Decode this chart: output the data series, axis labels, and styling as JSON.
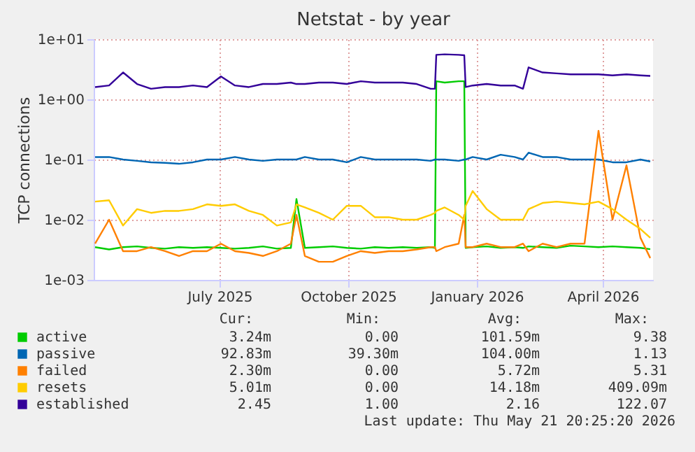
{
  "chart_data": {
    "type": "line",
    "title": "Netstat - by year",
    "ylabel": "TCP connections",
    "log": true,
    "grid": true,
    "legend": "bottom",
    "ylim": [
      0.001,
      10
    ],
    "yticks": [
      {
        "value": 0.001,
        "label": "1e-03"
      },
      {
        "value": 0.01,
        "label": "1e-02"
      },
      {
        "value": 0.1,
        "label": "1e-01"
      },
      {
        "value": 1,
        "label": "1e+00"
      },
      {
        "value": 10,
        "label": "1e+01"
      }
    ],
    "xlim": [
      "2025-04-17",
      "2026-05-22"
    ],
    "xticks": [
      {
        "value": "2025-07-16",
        "label": "July 2025"
      },
      {
        "value": "2025-10-16",
        "label": "October 2025"
      },
      {
        "value": "2026-01-16",
        "label": "January 2026"
      },
      {
        "value": "2026-04-16",
        "label": "April 2026"
      }
    ],
    "x": [
      "2025-04-18",
      "2025-04-28",
      "2025-05-08",
      "2025-05-18",
      "2025-05-28",
      "2025-06-07",
      "2025-06-17",
      "2025-06-27",
      "2025-07-07",
      "2025-07-17",
      "2025-07-27",
      "2025-08-06",
      "2025-08-16",
      "2025-08-26",
      "2025-09-05",
      "2025-09-09",
      "2025-09-15",
      "2025-09-25",
      "2025-10-05",
      "2025-10-15",
      "2025-10-25",
      "2025-11-04",
      "2025-11-14",
      "2025-11-24",
      "2025-12-04",
      "2025-12-14",
      "2025-12-17",
      "2025-12-18",
      "2025-12-24",
      "2026-01-03",
      "2026-01-07",
      "2026-01-08",
      "2026-01-13",
      "2026-01-23",
      "2026-02-02",
      "2026-02-12",
      "2026-02-18",
      "2026-02-22",
      "2026-03-04",
      "2026-03-14",
      "2026-03-24",
      "2026-04-03",
      "2026-04-13",
      "2026-04-23",
      "2026-05-03",
      "2026-05-13",
      "2026-05-20"
    ],
    "series": [
      {
        "name": "active",
        "color": "#00cc00",
        "values": [
          0.0035,
          0.0032,
          0.0035,
          0.0036,
          0.0034,
          0.0033,
          0.0035,
          0.0034,
          0.0035,
          0.0034,
          0.0033,
          0.0034,
          0.0036,
          0.0033,
          0.0034,
          0.022,
          0.0034,
          0.0035,
          0.0036,
          0.0034,
          0.0033,
          0.0035,
          0.0034,
          0.0035,
          0.0034,
          0.0035,
          0.0034,
          2.0,
          1.9,
          2.0,
          2.0,
          0.0034,
          0.0035,
          0.0036,
          0.0034,
          0.0035,
          0.0034,
          0.0036,
          0.0035,
          0.0034,
          0.0037,
          0.0036,
          0.0035,
          0.0036,
          0.0035,
          0.0034,
          0.00324
        ]
      },
      {
        "name": "passive",
        "color": "#0066b3",
        "values": [
          0.11,
          0.11,
          0.1,
          0.095,
          0.09,
          0.088,
          0.085,
          0.09,
          0.1,
          0.1,
          0.11,
          0.1,
          0.095,
          0.1,
          0.1,
          0.1,
          0.11,
          0.1,
          0.1,
          0.09,
          0.11,
          0.1,
          0.1,
          0.1,
          0.1,
          0.095,
          0.1,
          0.1,
          0.1,
          0.095,
          0.1,
          0.1,
          0.11,
          0.1,
          0.12,
          0.11,
          0.1,
          0.13,
          0.11,
          0.11,
          0.1,
          0.1,
          0.1,
          0.09,
          0.09,
          0.1,
          0.093
        ]
      },
      {
        "name": "failed",
        "color": "#ff8000",
        "values": [
          0.004,
          0.01,
          0.003,
          0.003,
          0.0035,
          0.003,
          0.0025,
          0.003,
          0.003,
          0.004,
          0.003,
          0.0028,
          0.0025,
          0.003,
          0.004,
          0.012,
          0.0025,
          0.002,
          0.002,
          0.0025,
          0.003,
          0.0028,
          0.003,
          0.003,
          0.0032,
          0.0035,
          0.0035,
          0.003,
          0.0035,
          0.004,
          0.012,
          0.0035,
          0.0035,
          0.004,
          0.0035,
          0.0035,
          0.004,
          0.003,
          0.004,
          0.0035,
          0.004,
          0.004,
          0.3,
          0.01,
          0.08,
          0.005,
          0.0023
        ]
      },
      {
        "name": "resets",
        "color": "#ffcc00",
        "values": [
          0.02,
          0.021,
          0.008,
          0.015,
          0.013,
          0.014,
          0.014,
          0.015,
          0.018,
          0.017,
          0.018,
          0.014,
          0.012,
          0.008,
          0.009,
          0.018,
          0.016,
          0.013,
          0.01,
          0.017,
          0.017,
          0.011,
          0.011,
          0.01,
          0.01,
          0.012,
          0.013,
          0.014,
          0.016,
          0.012,
          0.01,
          0.017,
          0.03,
          0.015,
          0.01,
          0.01,
          0.01,
          0.015,
          0.019,
          0.02,
          0.019,
          0.018,
          0.02,
          0.015,
          0.01,
          0.007,
          0.005
        ]
      },
      {
        "name": "established",
        "color": "#330099",
        "values": [
          1.6,
          1.7,
          2.8,
          1.8,
          1.5,
          1.6,
          1.6,
          1.7,
          1.6,
          2.4,
          1.7,
          1.6,
          1.8,
          1.8,
          1.9,
          1.8,
          1.8,
          1.9,
          1.9,
          1.8,
          2.0,
          1.9,
          1.9,
          1.9,
          1.8,
          1.5,
          1.5,
          5.5,
          5.6,
          5.5,
          5.4,
          1.6,
          1.7,
          1.8,
          1.7,
          1.7,
          1.5,
          3.4,
          2.8,
          2.7,
          2.6,
          2.6,
          2.6,
          2.5,
          2.6,
          2.5,
          2.45
        ]
      }
    ],
    "annotations": [
      "Cur:",
      "Min:",
      "Avg:",
      "Max:",
      "3.24m",
      "0.00",
      "101.59m",
      "9.38",
      "92.83m",
      "39.30m",
      "104.00m",
      "1.13",
      "2.30m",
      "0.00",
      "5.72m",
      "5.31",
      "5.01m",
      "0.00",
      "14.18m",
      "409.09m",
      "2.45",
      "1.00",
      "2.16",
      "122.07",
      "Last update: Thu May 21 20:25:20 2026"
    ]
  }
}
